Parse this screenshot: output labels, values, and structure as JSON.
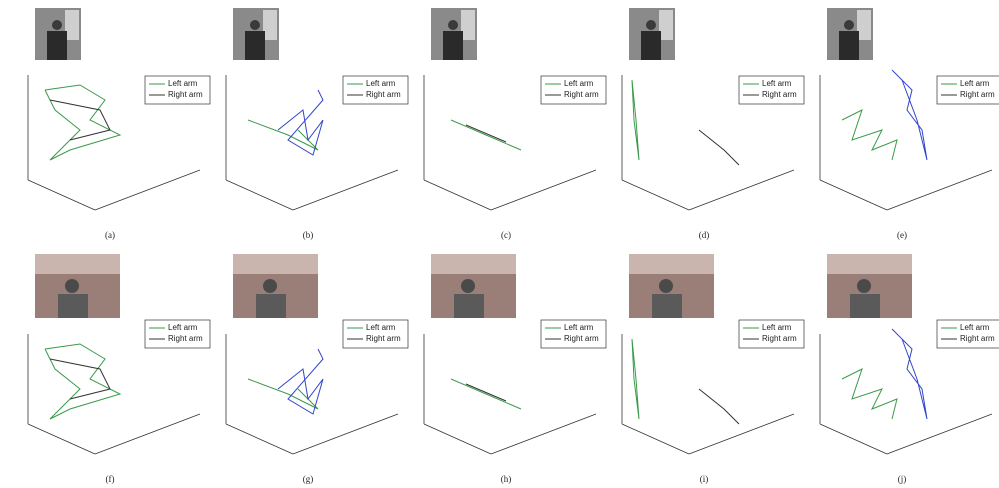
{
  "panels": [
    {
      "label": "(a)",
      "legend": [
        "Left arm",
        "Right arm"
      ]
    },
    {
      "label": "(b)",
      "legend": [
        "Left arm",
        "Right arm"
      ]
    },
    {
      "label": "(c)",
      "legend": [
        "Left arm",
        "Right arm"
      ]
    },
    {
      "label": "(d)",
      "legend": [
        "Left arm",
        "Right arm"
      ]
    },
    {
      "label": "(e)",
      "legend": [
        "Left arm",
        "Right arm"
      ]
    },
    {
      "label": "(f)",
      "legend": [
        "Left arm",
        "Right arm"
      ]
    },
    {
      "label": "(g)",
      "legend": [
        "Left arm",
        "Right arm"
      ]
    },
    {
      "label": "(h)",
      "legend": [
        "Left arm",
        "Right arm"
      ]
    },
    {
      "label": "(i)",
      "legend": [
        "Left arm",
        "Right arm"
      ]
    },
    {
      "label": "(j)",
      "legend": [
        "Left arm",
        "Right arm"
      ]
    }
  ]
}
